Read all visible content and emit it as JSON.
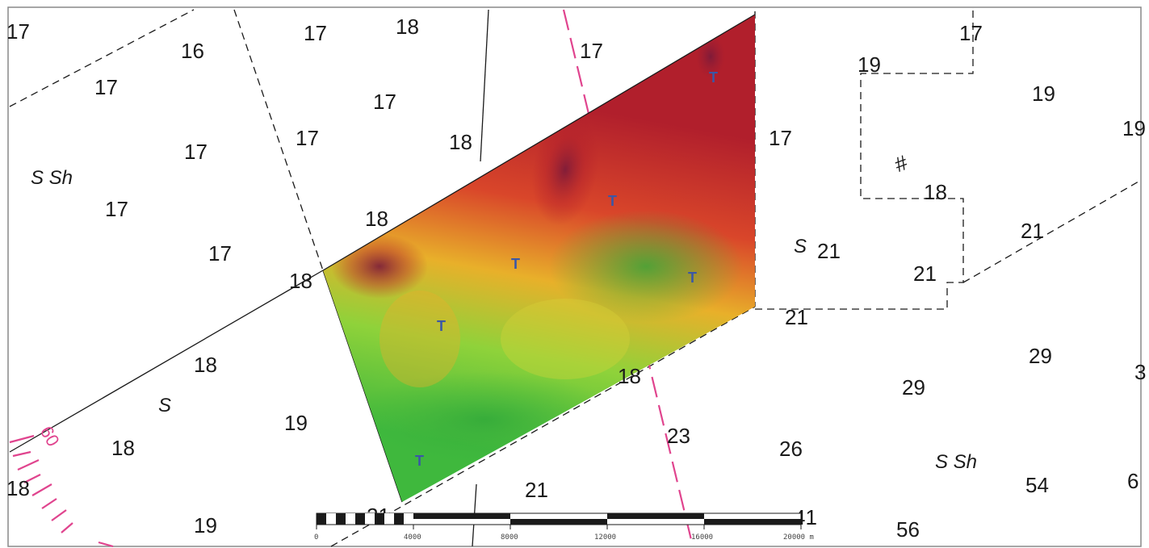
{
  "colors": {
    "chart_background": "#ffffff",
    "chart_lines": "#1a1a1a",
    "magenta_route": "#e0448e",
    "bathymetry_deep": "#b11f2c",
    "bathymetry_mid": "#e8b02a",
    "bathymetry_shallow": "#3fb83d",
    "tide_marker": "#3b57a6"
  },
  "map": {
    "soundings": [
      "17",
      "16",
      "17",
      "17",
      "17",
      "17",
      "17",
      "18",
      "17",
      "18",
      "18",
      "17",
      "18",
      "17",
      "18",
      "18",
      "17",
      "18",
      "19",
      "18",
      "18",
      "19",
      "21",
      "21",
      "21",
      "19",
      "21",
      "23",
      "26",
      "29",
      "29",
      "21",
      "56",
      "54",
      "19",
      "19",
      "17",
      "3",
      "6",
      "41",
      "21",
      "17"
    ],
    "seabed_labels": [
      "S Sh",
      "S",
      "S",
      "S Sh"
    ],
    "route_annotation": "60",
    "tide_marker_symbol": "T",
    "tide_marker_count": 6,
    "wreck_symbol": "#",
    "icons": [
      "tide-marker-icon",
      "wreck-icon",
      "compass-rose-icon"
    ]
  },
  "scalebar": {
    "ticks": [
      "0",
      "4000",
      "8000",
      "12000",
      "16000",
      "20000 m"
    ]
  }
}
